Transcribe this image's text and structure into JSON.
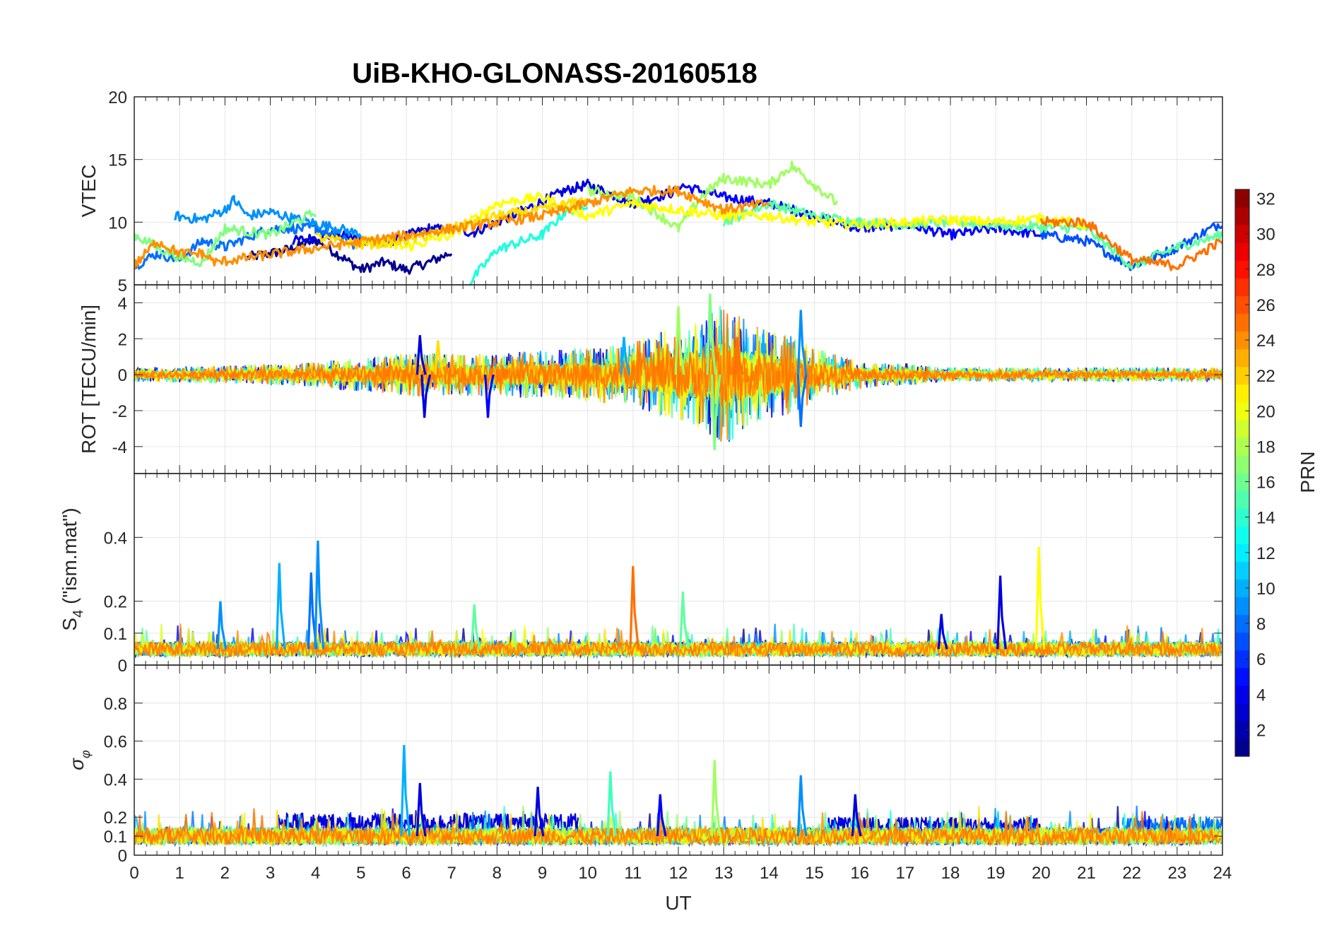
{
  "title": "UiB-KHO-GLONASS-20160518",
  "chart_data": [
    {
      "type": "line",
      "panel": "VTEC",
      "ylabel": "VTEC",
      "ylim": [
        5,
        20
      ],
      "yticks": [
        5,
        10,
        15,
        20
      ],
      "xlim": [
        0,
        24
      ],
      "grid": true,
      "series": [
        {
          "prn": 2,
          "color": "#00008f",
          "x": [
            2.5,
            3,
            3.5,
            4,
            4.5,
            5,
            5.5,
            6,
            6.5,
            7
          ],
          "y": [
            7.2,
            7.5,
            7.9,
            8.6,
            7.4,
            6.2,
            6.8,
            6.2,
            6.8,
            7.6
          ]
        },
        {
          "prn": 3,
          "color": "#0000df",
          "x": [
            3.5,
            4.5,
            5.5,
            6.5,
            7.5,
            8.5,
            9.5,
            10,
            11,
            12
          ],
          "y": [
            8.5,
            9.0,
            8.3,
            9.5,
            9.2,
            10.8,
            12.5,
            13,
            11.5,
            12.5
          ]
        },
        {
          "prn": 4,
          "color": "#0000ff",
          "x": [
            12,
            13,
            14,
            15,
            16,
            17,
            18,
            19,
            20
          ],
          "y": [
            13,
            12,
            11.5,
            10.5,
            9.5,
            9.8,
            9.0,
            9.5,
            9.0
          ]
        },
        {
          "prn": 7,
          "color": "#004fff",
          "x": [
            20,
            21,
            22,
            23,
            24
          ],
          "y": [
            9,
            8.5,
            6.5,
            8.0,
            10.0
          ]
        },
        {
          "prn": 8,
          "color": "#0070ff",
          "x": [
            0,
            0.5,
            1,
            1.5,
            2,
            2.5,
            3,
            4,
            5
          ],
          "y": [
            6.5,
            7.5,
            7.0,
            8.5,
            8.0,
            8.8,
            9.5,
            9.5,
            8.0
          ]
        },
        {
          "prn": 9,
          "color": "#0090ff",
          "x": [
            0.9,
            1.5,
            2,
            2.2,
            2.5,
            3,
            3.5,
            4,
            4.5,
            5
          ],
          "y": [
            10.5,
            10.2,
            11.0,
            11.8,
            10.5,
            10.8,
            10.3,
            9.9,
            9.5,
            9.0
          ]
        },
        {
          "prn": 12,
          "color": "#1fffdf",
          "x": [
            7.4,
            8,
            8.5,
            9,
            9.5,
            10
          ],
          "y": [
            5.2,
            7.8,
            8.4,
            9.0,
            10.8,
            11.5
          ]
        },
        {
          "prn": 14,
          "color": "#5fff9f",
          "x": [
            13,
            14,
            15,
            16,
            17,
            18,
            19,
            20,
            21,
            22,
            23,
            24
          ],
          "y": [
            10,
            11.5,
            10.5,
            10.0,
            9.8,
            10.0,
            9.8,
            9.6,
            9.5,
            6.5,
            8.0,
            9.0
          ]
        },
        {
          "prn": 16,
          "color": "#7fff7f",
          "x": [
            0,
            0.5,
            1,
            1.5,
            2,
            3,
            4
          ],
          "y": [
            9,
            8.0,
            7.2,
            6.8,
            9.5,
            9.0,
            10.8
          ]
        },
        {
          "prn": 17,
          "color": "#9fff5f",
          "x": [
            10,
            11,
            12,
            12.5,
            13,
            14,
            14.5,
            15,
            15.5
          ],
          "y": [
            12.5,
            12.0,
            9.5,
            12.0,
            13.5,
            13.0,
            14.5,
            13.0,
            11.5
          ]
        },
        {
          "prn": 20,
          "color": "#ffff00",
          "x": [
            5,
            6,
            7,
            8,
            9,
            10,
            11,
            12,
            13,
            14,
            15,
            16,
            17,
            18,
            19,
            20,
            21
          ],
          "y": [
            8.5,
            8.0,
            9.0,
            11.5,
            12.0,
            10.5,
            11.5,
            11.0,
            10.5,
            10.5,
            10.0,
            9.8,
            10.0,
            10.2,
            10.0,
            10.3,
            9.8
          ]
        },
        {
          "prn": 21,
          "color": "#ffdf00",
          "x": [
            4,
            5,
            6,
            7,
            8,
            9,
            10
          ],
          "y": [
            8.8,
            8.2,
            8.5,
            9.5,
            10.5,
            11.0,
            11.8
          ]
        },
        {
          "prn": 23,
          "color": "#ff8f00",
          "x": [
            0,
            0.5,
            1,
            1.5,
            1.8,
            9,
            10,
            11,
            12,
            13,
            14
          ],
          "y": [
            6.5,
            8.5,
            7.5,
            7.5,
            6.8,
            10.5,
            11.5,
            12.5,
            12.5,
            11.0,
            11.5
          ]
        },
        {
          "prn": 24,
          "color": "#ff7000",
          "x": [
            20,
            21,
            22,
            23,
            24
          ],
          "y": [
            10,
            10.0,
            7.0,
            6.5,
            8.5
          ]
        }
      ]
    },
    {
      "type": "line",
      "panel": "ROT",
      "ylabel": "ROT [TECU/min]",
      "ylim": [
        -5.5,
        5
      ],
      "yticks": [
        -4,
        -2,
        0,
        2,
        4
      ],
      "xlim": [
        0,
        24
      ],
      "grid": true,
      "envelope": {
        "x": [
          0,
          2,
          4,
          6,
          8,
          10,
          11,
          12,
          12.5,
          13,
          13.5,
          14,
          14.5,
          15,
          16,
          17,
          18,
          20,
          22,
          24
        ],
        "amplitude": [
          0.4,
          0.5,
          0.7,
          1.2,
          1.2,
          1.5,
          1.8,
          2.8,
          3.0,
          4.0,
          3.0,
          2.5,
          2.2,
          1.5,
          0.8,
          0.6,
          0.4,
          0.4,
          0.4,
          0.4
        ]
      },
      "spikes": [
        {
          "x": 6.3,
          "y": 2.2,
          "color": "#0000df"
        },
        {
          "x": 6.4,
          "y": -2.4,
          "color": "#0000df"
        },
        {
          "x": 6.7,
          "y": 1.9,
          "color": "#ffdf00"
        },
        {
          "x": 7.8,
          "y": -2.4,
          "color": "#0000ff"
        },
        {
          "x": 10.8,
          "y": 2.1,
          "color": "#00b0ff"
        },
        {
          "x": 12.0,
          "y": 3.8,
          "color": "#9fff5f"
        },
        {
          "x": 12.7,
          "y": 4.5,
          "color": "#7fff7f"
        },
        {
          "x": 12.8,
          "y": -4.2,
          "color": "#7fff7f"
        },
        {
          "x": 13.3,
          "y": 2.1,
          "color": "#ff7000"
        },
        {
          "x": 14.7,
          "y": 3.6,
          "color": "#0090ff"
        },
        {
          "x": 14.7,
          "y": -2.9,
          "color": "#0070ff"
        }
      ]
    },
    {
      "type": "line",
      "panel": "S4",
      "ylabel": "S4 (\"ism.mat\")",
      "ylim": [
        0,
        0.6
      ],
      "yticks": [
        0,
        0.1,
        0.2,
        0.4
      ],
      "xlim": [
        0,
        24
      ],
      "grid": true,
      "baseline": 0.05,
      "spikes": [
        {
          "x": 1.9,
          "y": 0.2,
          "color": "#0090ff"
        },
        {
          "x": 3.2,
          "y": 0.32,
          "color": "#00b0ff"
        },
        {
          "x": 3.9,
          "y": 0.29,
          "color": "#0070ff"
        },
        {
          "x": 4.05,
          "y": 0.39,
          "color": "#0090ff"
        },
        {
          "x": 7.5,
          "y": 0.19,
          "color": "#5fff9f"
        },
        {
          "x": 11.0,
          "y": 0.31,
          "color": "#ff7000"
        },
        {
          "x": 12.1,
          "y": 0.23,
          "color": "#5fff9f"
        },
        {
          "x": 17.8,
          "y": 0.16,
          "color": "#0000df"
        },
        {
          "x": 19.1,
          "y": 0.28,
          "color": "#0000df"
        },
        {
          "x": 19.95,
          "y": 0.37,
          "color": "#ffff00"
        }
      ]
    },
    {
      "type": "line",
      "panel": "sigma_phi",
      "ylabel": "σφ",
      "ylim": [
        0,
        1
      ],
      "yticks": [
        0,
        0.1,
        0.2,
        0.4,
        0.6,
        0.8
      ],
      "xlim": [
        0,
        24
      ],
      "xticks": [
        0,
        1,
        2,
        3,
        4,
        5,
        6,
        7,
        8,
        9,
        10,
        11,
        12,
        13,
        14,
        15,
        16,
        17,
        18,
        19,
        20,
        21,
        22,
        23,
        24
      ],
      "xlabel": "UT",
      "grid": true,
      "baseline": 0.1,
      "spikes": [
        {
          "x": 5.95,
          "y": 0.58,
          "color": "#00b0ff"
        },
        {
          "x": 6.3,
          "y": 0.38,
          "color": "#0000df"
        },
        {
          "x": 8.9,
          "y": 0.36,
          "color": "#0000df"
        },
        {
          "x": 10.5,
          "y": 0.44,
          "color": "#3fffbf"
        },
        {
          "x": 11.6,
          "y": 0.32,
          "color": "#0000ff"
        },
        {
          "x": 12.8,
          "y": 0.5,
          "color": "#9fff5f"
        },
        {
          "x": 14.7,
          "y": 0.42,
          "color": "#0090ff"
        },
        {
          "x": 15.9,
          "y": 0.32,
          "color": "#0000df"
        }
      ],
      "bands": [
        {
          "x0": 3.2,
          "x1": 9.8,
          "y0": 0.12,
          "y1": 0.22,
          "color": "#0000df"
        },
        {
          "x0": 15.3,
          "x1": 20.0,
          "y0": 0.12,
          "y1": 0.2,
          "color": "#0000df"
        },
        {
          "x0": 21.8,
          "x1": 24,
          "y0": 0.12,
          "y1": 0.2,
          "color": "#0070ff"
        }
      ]
    }
  ],
  "colorbar": {
    "label": "PRN",
    "range": [
      1,
      32
    ],
    "ticks": [
      2,
      4,
      6,
      8,
      10,
      12,
      14,
      16,
      18,
      20,
      22,
      24,
      26,
      28,
      30,
      32
    ],
    "colormap": "jet"
  }
}
